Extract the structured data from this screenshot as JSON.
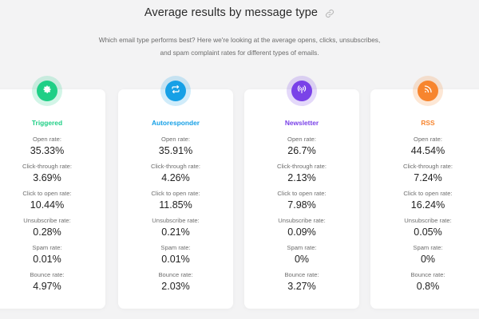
{
  "header": {
    "title": "Average results by message type",
    "intro_line1": "Which email type performs best? Here we're looking at the average opens, clicks, unsubscribes,",
    "intro_line2": "and spam complaint rates for different types of emails."
  },
  "colors": {
    "triggered": "#1fcf86",
    "autoresponder": "#16a0e6",
    "newsletter": "#7a42e8",
    "rss": "#f7852e"
  },
  "cards": [
    {
      "title": "Triggered",
      "icon": "gear-icon",
      "metrics": [
        {
          "label": "Open rate:",
          "value": "35.33%"
        },
        {
          "label": "Click-through rate:",
          "value": "3.69%"
        },
        {
          "label": "Click to open rate:",
          "value": "10.44%"
        },
        {
          "label": "Unsubscribe rate:",
          "value": "0.28%"
        },
        {
          "label": "Spam rate:",
          "value": "0.01%"
        },
        {
          "label": "Bounce rate:",
          "value": "4.97%"
        }
      ]
    },
    {
      "title": "Autoresponder",
      "icon": "repeat-icon",
      "metrics": [
        {
          "label": "Open rate:",
          "value": "35.91%"
        },
        {
          "label": "Click-through rate:",
          "value": "4.26%"
        },
        {
          "label": "Click to open rate:",
          "value": "11.85%"
        },
        {
          "label": "Unsubscribe rate:",
          "value": "0.21%"
        },
        {
          "label": "Spam rate:",
          "value": "0.01%"
        },
        {
          "label": "Bounce rate:",
          "value": "2.03%"
        }
      ]
    },
    {
      "title": "Newsletter",
      "icon": "broadcast-icon",
      "metrics": [
        {
          "label": "Open rate:",
          "value": "26.7%"
        },
        {
          "label": "Click-through rate:",
          "value": "2.13%"
        },
        {
          "label": "Click to open rate:",
          "value": "7.98%"
        },
        {
          "label": "Unsubscribe rate:",
          "value": "0.09%"
        },
        {
          "label": "Spam rate:",
          "value": "0%"
        },
        {
          "label": "Bounce rate:",
          "value": "3.27%"
        }
      ]
    },
    {
      "title": "RSS",
      "icon": "rss-icon",
      "metrics": [
        {
          "label": "Open rate:",
          "value": "44.54%"
        },
        {
          "label": "Click-through rate:",
          "value": "7.24%"
        },
        {
          "label": "Click to open rate:",
          "value": "16.24%"
        },
        {
          "label": "Unsubscribe rate:",
          "value": "0.05%"
        },
        {
          "label": "Spam rate:",
          "value": "0%"
        },
        {
          "label": "Bounce rate:",
          "value": "0.8%"
        }
      ]
    }
  ]
}
